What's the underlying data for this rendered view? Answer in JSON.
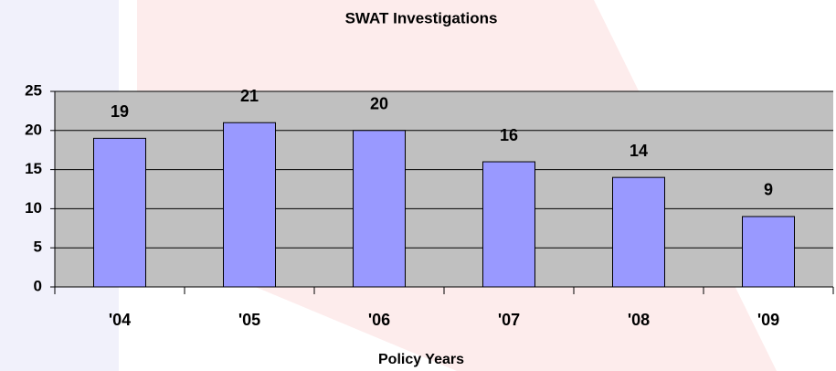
{
  "chart_data": {
    "type": "bar",
    "title": "SWAT Investigations",
    "x_label": "Policy Years",
    "categories": [
      "'04",
      "'05",
      "'06",
      "'07",
      "'08",
      "'09"
    ],
    "values": [
      19,
      21,
      20,
      16,
      14,
      9
    ],
    "color": "#9999ff",
    "ylim": [
      0,
      25
    ],
    "yticks": [
      0,
      5,
      10,
      15,
      20,
      25
    ],
    "grid": true
  }
}
